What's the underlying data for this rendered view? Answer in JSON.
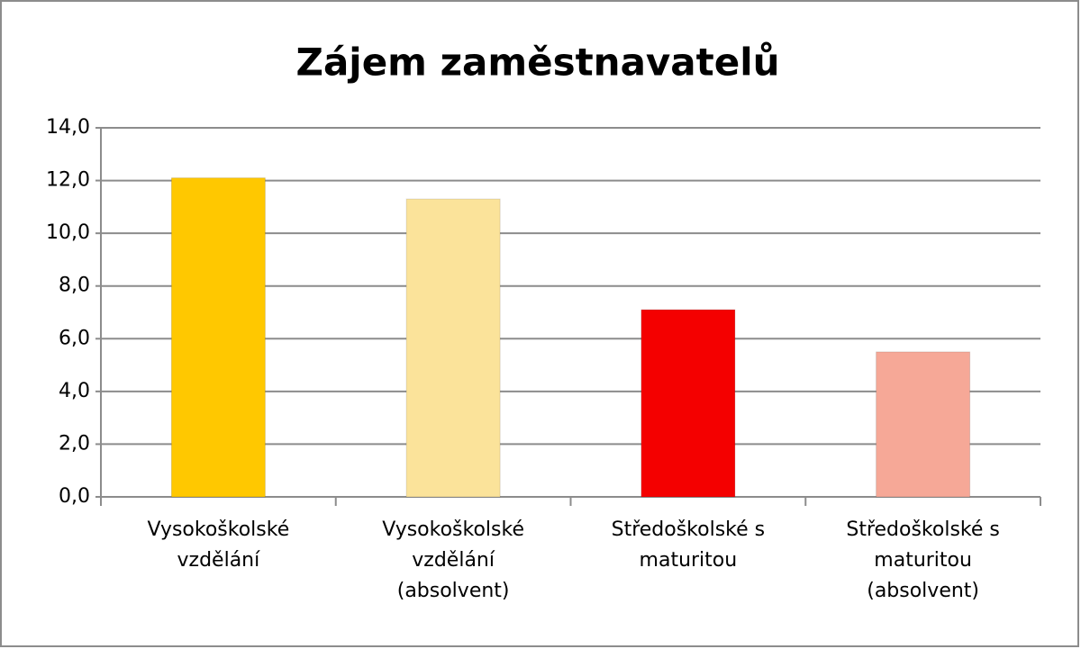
{
  "chart_data": {
    "type": "bar",
    "title": "Zájem zaměstnavatelů",
    "categories": [
      "Vysokoškolské vzdělání",
      "Vysokoškolské vzdělání (absolvent)",
      "Středoškolské s maturitou",
      "Středoškolské s maturitou (absolvent)"
    ],
    "values": [
      12.1,
      11.3,
      7.1,
      5.5
    ],
    "colors": [
      "#ffc800",
      "#fbe39a",
      "#f40000",
      "#f6a897"
    ],
    "ylim": [
      0,
      14
    ],
    "yticks": [
      {
        "value": 0,
        "label": "0,0"
      },
      {
        "value": 2,
        "label": "2,0"
      },
      {
        "value": 4,
        "label": "4,0"
      },
      {
        "value": 6,
        "label": "6,0"
      },
      {
        "value": 8,
        "label": "8,0"
      },
      {
        "value": 10,
        "label": "10,0"
      },
      {
        "value": 12,
        "label": "12,0"
      },
      {
        "value": 14,
        "label": "14,0"
      }
    ],
    "grid": true
  }
}
